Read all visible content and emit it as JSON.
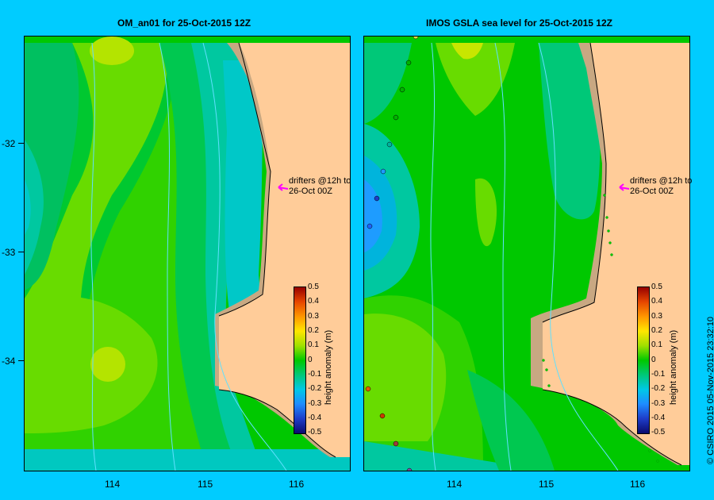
{
  "left_panel": {
    "title": "OM_an01  for 25-Oct-2015 12Z",
    "drifters_line1": "drifters @12h to",
    "drifters_line2": "26-Oct 00Z",
    "colorbar_title": "height anomaly (m)"
  },
  "right_panel": {
    "title": "IMOS GSLA sea level  for 25-Oct-2015 12Z",
    "drifters_line1": "drifters @12h to",
    "drifters_line2": "26-Oct 00Z",
    "colorbar_title": "height anomaly (m)"
  },
  "y_ticks": [
    "-32",
    "-33",
    "-34"
  ],
  "x_ticks": [
    "114",
    "115",
    "116"
  ],
  "colorbar_ticks": [
    "0.5",
    "0.4",
    "0.3",
    "0.2",
    "0.1",
    "0",
    "-0.1",
    "-0.2",
    "-0.3",
    "-0.4",
    "-0.5"
  ],
  "copyright": "© CSIRO 2015   05-Nov-2015 23:32:10",
  "colors": {
    "background": "#00ccff",
    "land": "#ffcc99",
    "shelf": "#c8a882",
    "drifter_arrow": "#ff00ff"
  }
}
